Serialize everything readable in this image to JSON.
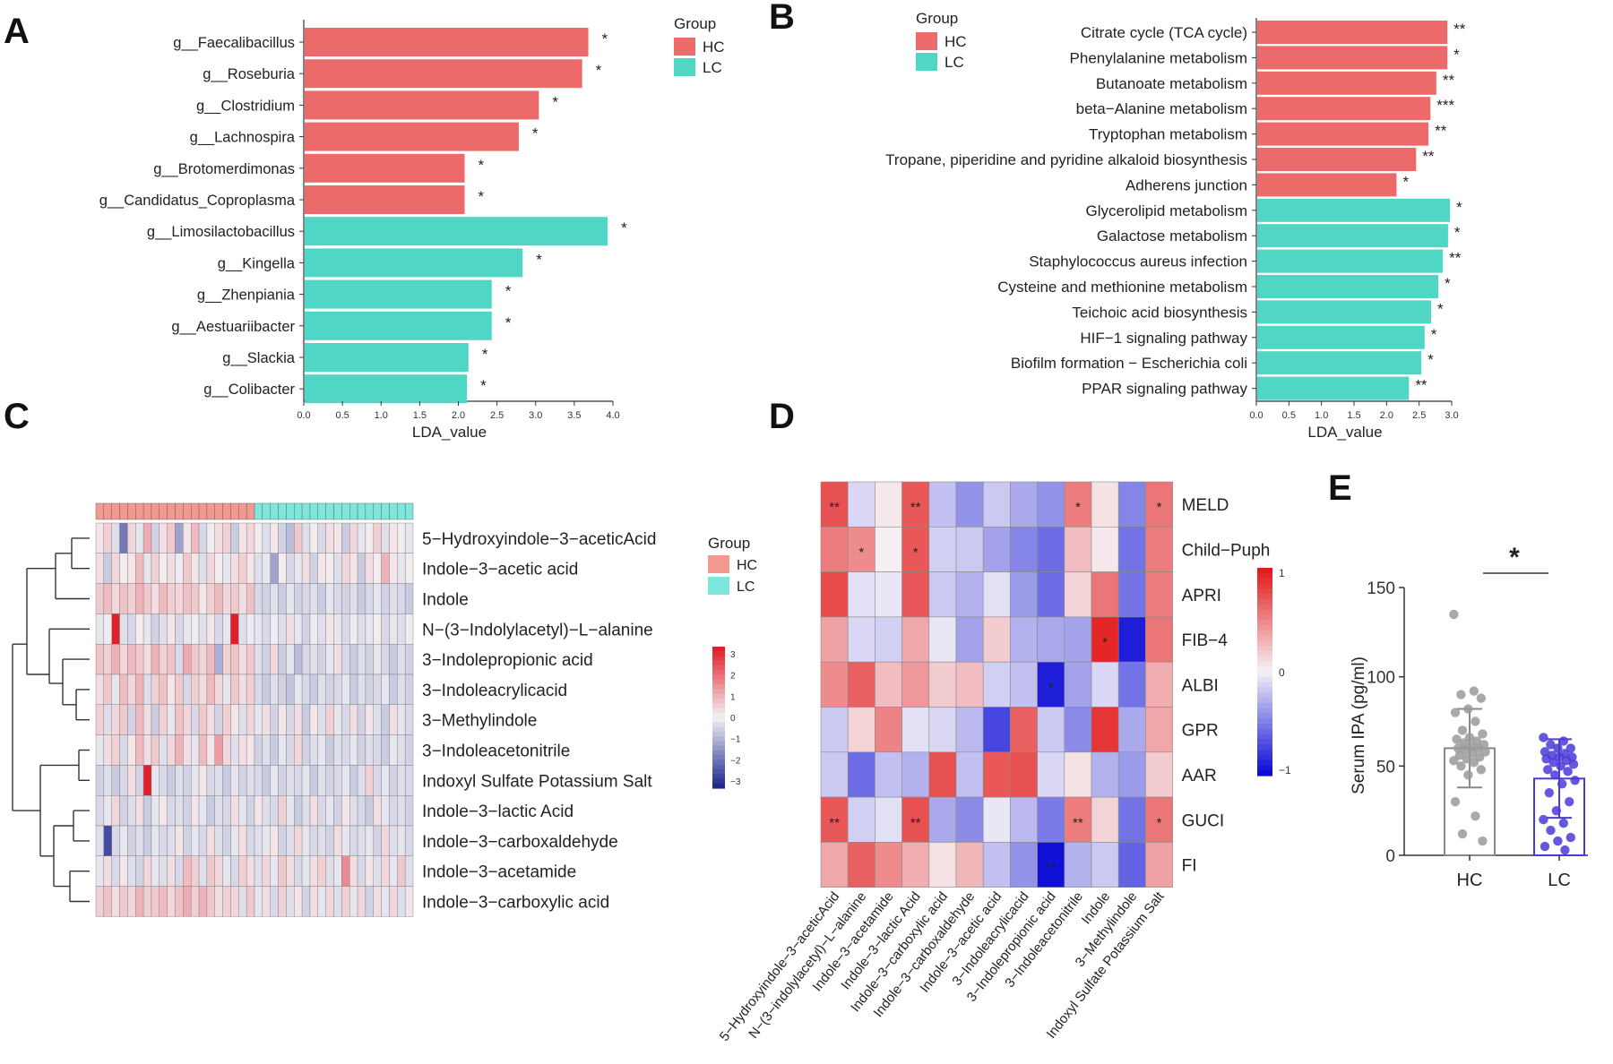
{
  "colors": {
    "hc": "#ed6a6a",
    "lc": "#4fd6c4",
    "highlight": "#d63a3a",
    "heat_low": "#0b0bd6",
    "heat_mid": "#f5f3f7",
    "heat_high": "#e41b1b",
    "c_low": "#1f2a8c",
    "c_high": "#e01f2a",
    "star_on_heat": "#f7d070",
    "bar_hc_dot": "#9a9a9a",
    "bar_lc_dot": "#4a3ad8"
  },
  "panel_labels": [
    "A",
    "B",
    "C",
    "D",
    "E"
  ],
  "chart_data": [
    {
      "panel": "A",
      "type": "bar",
      "orientation": "horizontal",
      "xlabel": "LDA_value",
      "xlim": [
        0,
        4.0
      ],
      "xticks": [
        "0.0",
        "0.5",
        "1.0",
        "1.5",
        "2.0",
        "2.5",
        "3.0",
        "3.5",
        "4.0"
      ],
      "legend": {
        "title": "Group",
        "entries": [
          "HC",
          "LC"
        ],
        "position": "top-right"
      },
      "highlighted": [
        "g__Clostridium"
      ],
      "categories": [
        "g__Faecalibacillus",
        "g__Roseburia",
        "g__Clostridium",
        "g__Lachnospira",
        "g__Brotomerdimonas",
        "g__Candidatus_Coproplasma",
        "g__Limosilactobacillus",
        "g__Kingella",
        "g__Zhenpiania",
        "g__Aestuariibacter",
        "g__Slackia",
        "g__Colibacter"
      ],
      "values": [
        3.67,
        3.59,
        3.03,
        2.77,
        2.07,
        2.07,
        3.92,
        2.82,
        2.42,
        2.42,
        2.12,
        2.1
      ],
      "groups": [
        "HC",
        "HC",
        "HC",
        "HC",
        "HC",
        "HC",
        "LC",
        "LC",
        "LC",
        "LC",
        "LC",
        "LC"
      ],
      "significance": [
        "*",
        "*",
        "*",
        "*",
        "*",
        "*",
        "*",
        "*",
        "*",
        "*",
        "*",
        "*"
      ]
    },
    {
      "panel": "B",
      "type": "bar",
      "orientation": "horizontal",
      "xlabel": "LDA_value",
      "xlim": [
        0,
        3.0
      ],
      "xticks": [
        "0.0",
        "0.5",
        "1.0",
        "1.5",
        "2.0",
        "2.5",
        "3.0"
      ],
      "legend": {
        "title": "Group",
        "entries": [
          "HC",
          "LC"
        ],
        "position": "top-left"
      },
      "highlighted": [
        "Tryptophan metabolism"
      ],
      "categories": [
        "Citrate cycle (TCA cycle)",
        "Phenylalanine metabolism",
        "Butanoate metabolism",
        "beta−Alanine metabolism",
        "Tryptophan metabolism",
        "Tropane, piperidine and pyridine alkaloid biosynthesis",
        "Adherens junction",
        "Glycerolipid metabolism",
        "Galactose metabolism",
        "Staphylococcus aureus infection",
        "Cysteine and methionine metabolism",
        "Teichoic acid biosynthesis",
        "HIF−1 signaling pathway",
        "Biofilm formation − Escherichia coli",
        "PPAR signaling pathway"
      ],
      "values": [
        2.92,
        2.92,
        2.75,
        2.66,
        2.63,
        2.44,
        2.14,
        2.96,
        2.93,
        2.85,
        2.78,
        2.67,
        2.57,
        2.52,
        2.33
      ],
      "groups": [
        "HC",
        "HC",
        "HC",
        "HC",
        "HC",
        "HC",
        "HC",
        "LC",
        "LC",
        "LC",
        "LC",
        "LC",
        "LC",
        "LC",
        "LC"
      ],
      "significance": [
        "**",
        "*",
        "**",
        "***",
        "**",
        "**",
        "*",
        "*",
        "*",
        "**",
        "*",
        "*",
        "*",
        "*",
        "**"
      ]
    },
    {
      "panel": "C",
      "type": "heatmap",
      "legend": {
        "title": "Group",
        "entries": [
          "HC",
          "LC"
        ],
        "position": "right"
      },
      "colorbar": {
        "ticks": [
          "3",
          "2",
          "1",
          "0",
          "−1",
          "−2",
          "−3"
        ],
        "range": [
          -3,
          3
        ]
      },
      "column_groups": [
        "HC",
        "HC",
        "HC",
        "HC",
        "HC",
        "HC",
        "HC",
        "HC",
        "HC",
        "HC",
        "HC",
        "HC",
        "HC",
        "HC",
        "HC",
        "HC",
        "HC",
        "HC",
        "HC",
        "HC",
        "LC",
        "LC",
        "LC",
        "LC",
        "LC",
        "LC",
        "LC",
        "LC",
        "LC",
        "LC",
        "LC",
        "LC",
        "LC",
        "LC",
        "LC",
        "LC",
        "LC",
        "LC",
        "LC",
        "LC"
      ],
      "highlighted": [
        "3−Indolepropionic acid"
      ],
      "rows": [
        "5−Hydroxyindole−3−aceticAcid",
        "Indole−3−acetic acid",
        "Indole",
        "N−(3−Indolylacetyl)−L−alanine",
        "3−Indolepropionic acid",
        "3−Indoleacrylicacid",
        "3−Methylindole",
        "3−Indoleacetonitrile",
        "Indoxyl Sulfate Potassium Salt",
        "Indole−3−lactic Acid",
        "Indole−3−carboxaldehyde",
        "Indole−3−acetamide",
        "Indole−3−carboxylic acid"
      ],
      "values": [
        [
          0.2,
          0.5,
          -0.3,
          -1.8,
          0.4,
          -0.2,
          1.0,
          -0.5,
          0.3,
          0.6,
          -1.2,
          0.2,
          0.8,
          -0.4,
          0.1,
          0.3,
          0.5,
          -0.6,
          0.2,
          0.4,
          0.1,
          -0.3,
          0.2,
          -0.5,
          -0.8,
          0.6,
          -0.3,
          0.1,
          -0.4,
          0.3,
          0.2,
          -0.6,
          0.4,
          -0.2,
          0.1,
          0.5,
          -0.3,
          0.2,
          0.1,
          -0.2
        ],
        [
          0.3,
          -0.6,
          0.4,
          0.1,
          0.2,
          0.8,
          -0.2,
          0.5,
          0.1,
          0.3,
          -0.1,
          0.6,
          0.2,
          -0.3,
          0.4,
          0.1,
          -0.2,
          0.3,
          0.5,
          0.2,
          -0.3,
          -0.2,
          -1.2,
          0.1,
          -0.4,
          -0.2,
          0.3,
          -0.5,
          0.2,
          0.1,
          -0.3,
          0.4,
          0.2,
          -0.6,
          0.3,
          0.1,
          0.9,
          0.2,
          -0.2,
          0.1
        ],
        [
          0.6,
          0.8,
          0.4,
          0.7,
          0.5,
          0.9,
          0.6,
          0.3,
          0.8,
          0.5,
          0.4,
          0.7,
          0.6,
          0.2,
          0.5,
          0.8,
          0.4,
          0.6,
          0.3,
          0.7,
          -0.4,
          -0.5,
          -0.3,
          -0.6,
          -0.2,
          -0.5,
          -0.4,
          -0.3,
          -0.6,
          -0.2,
          -0.4,
          -0.5,
          -0.3,
          -0.6,
          -0.4,
          -0.2,
          -0.5,
          -0.3,
          -0.4,
          -0.6
        ],
        [
          -0.2,
          -0.1,
          3.2,
          -0.3,
          -0.4,
          0.1,
          -0.2,
          -0.5,
          -0.3,
          0.2,
          -0.4,
          -0.2,
          -0.1,
          -0.3,
          0.2,
          -0.4,
          -0.2,
          3.0,
          -0.3,
          -0.1,
          -0.2,
          -0.4,
          -0.1,
          -0.3,
          0.3,
          -0.2,
          -0.5,
          -0.1,
          -0.3,
          0.2,
          -0.2,
          -0.4,
          -0.1,
          -0.3,
          -0.2,
          0.1,
          -0.4,
          -0.2,
          -0.3,
          -0.1
        ],
        [
          0.7,
          0.5,
          0.9,
          0.4,
          0.8,
          0.6,
          0.3,
          0.9,
          0.5,
          0.7,
          -0.4,
          1.0,
          0.6,
          0.4,
          0.8,
          -1.0,
          0.5,
          0.7,
          0.3,
          0.6,
          -0.3,
          -0.5,
          0.4,
          -0.6,
          -0.2,
          -0.8,
          -0.4,
          -0.3,
          -0.5,
          -0.2,
          0.3,
          -0.4,
          -0.6,
          -0.3,
          -0.5,
          -0.2,
          -0.4,
          -0.6,
          -0.3,
          -0.5
        ],
        [
          0.3,
          0.6,
          -0.2,
          0.8,
          0.4,
          0.9,
          -0.3,
          0.5,
          0.7,
          0.2,
          0.6,
          -0.4,
          0.5,
          0.3,
          0.8,
          0.4,
          -0.2,
          0.6,
          0.3,
          0.5,
          -0.4,
          -0.6,
          -0.3,
          -0.5,
          -0.7,
          -0.2,
          -0.4,
          -0.6,
          -0.3,
          -0.5,
          -0.4,
          -0.2,
          -0.6,
          -0.3,
          -0.5,
          -0.4,
          -0.2,
          -0.6,
          -0.3,
          -0.5
        ],
        [
          0.5,
          -0.3,
          0.4,
          0.6,
          -0.5,
          0.8,
          0.3,
          -0.6,
          0.5,
          -0.2,
          0.7,
          0.4,
          -0.4,
          0.6,
          0.3,
          -0.5,
          0.5,
          0.2,
          -0.3,
          0.4,
          -0.2,
          0.3,
          -0.5,
          0.2,
          -0.4,
          0.3,
          -0.6,
          0.2,
          -0.3,
          0.5,
          -0.2,
          -0.4,
          0.3,
          -0.5,
          0.2,
          -0.3,
          -0.6,
          0.3,
          -0.2,
          -0.4
        ],
        [
          -0.2,
          0.3,
          0.5,
          -0.4,
          0.2,
          0.8,
          0.3,
          0.6,
          -0.3,
          0.4,
          0.9,
          0.3,
          -0.2,
          0.8,
          0.2,
          1.2,
          0.4,
          -0.3,
          0.3,
          0.2,
          -0.5,
          -0.3,
          -0.6,
          -0.2,
          -0.4,
          0.4,
          -0.5,
          -0.3,
          -0.2,
          -0.6,
          -0.3,
          -0.4,
          -0.2,
          -0.5,
          -0.3,
          -0.4,
          -0.6,
          -0.2,
          -0.3,
          -0.5
        ],
        [
          -0.5,
          -0.3,
          -0.6,
          -0.4,
          0.3,
          -0.5,
          3.1,
          -0.2,
          -0.4,
          -0.6,
          -0.3,
          -0.5,
          -0.2,
          0.2,
          -0.4,
          -0.3,
          -0.6,
          -0.2,
          -0.5,
          -0.3,
          -0.4,
          -0.6,
          -0.2,
          -0.5,
          -0.3,
          -0.4,
          -0.2,
          -0.6,
          -0.3,
          -0.5,
          -0.4,
          -0.2,
          -0.6,
          -0.3,
          0.5,
          -0.4,
          -0.2,
          -0.5,
          -0.3,
          -0.4
        ],
        [
          -0.4,
          -0.2,
          0.4,
          -0.5,
          -0.3,
          0.3,
          -0.6,
          -0.2,
          0.2,
          -0.4,
          -0.3,
          -0.5,
          0.2,
          -0.2,
          -0.6,
          -0.3,
          -0.4,
          0.3,
          -0.2,
          -0.5,
          0.2,
          -0.3,
          -0.4,
          0.5,
          -0.2,
          -0.6,
          -0.3,
          0.3,
          -0.4,
          -0.2,
          -0.5,
          0.2,
          -0.3,
          -0.4,
          -0.6,
          0.3,
          -0.2,
          -0.4,
          -0.3,
          -0.5
        ],
        [
          -0.3,
          -2.5,
          -0.4,
          -0.2,
          -0.5,
          -0.3,
          -0.6,
          -0.2,
          -0.4,
          -0.3,
          0.2,
          -0.5,
          -0.2,
          -0.4,
          0.3,
          -0.3,
          -0.5,
          -0.2,
          0.3,
          -0.4,
          -0.3,
          -0.2,
          0.2,
          -0.5,
          -0.3,
          0.4,
          -0.2,
          -0.4,
          -0.3,
          -0.5,
          0.3,
          -0.2,
          -0.4,
          -0.3,
          -0.2,
          -0.5,
          0.4,
          -0.3,
          -0.2,
          -0.4
        ],
        [
          -0.2,
          0.3,
          -0.4,
          0.2,
          -0.3,
          -0.5,
          0.4,
          -0.2,
          -0.3,
          0.3,
          -0.4,
          0.8,
          0.5,
          -0.3,
          0.6,
          0.4,
          -0.2,
          -0.4,
          0.5,
          0.3,
          -0.3,
          0.4,
          -0.2,
          0.6,
          0.3,
          -0.4,
          -0.2,
          0.3,
          0.5,
          -0.3,
          -0.2,
          1.5,
          0.3,
          -0.4,
          0.2,
          -0.3,
          0.4,
          -0.2,
          0.6,
          -0.3
        ],
        [
          0.5,
          0.7,
          0.3,
          0.6,
          0.4,
          0.9,
          0.5,
          0.6,
          0.8,
          0.4,
          0.7,
          1.0,
          0.5,
          0.9,
          0.6,
          0.3,
          0.5,
          0.4,
          -0.3,
          0.6,
          -0.2,
          0.3,
          -0.4,
          0.5,
          -0.3,
          0.2,
          -0.5,
          0.3,
          -0.2,
          0.4,
          -0.3,
          0.5,
          -0.2,
          0.4,
          -0.5,
          0.3,
          -0.2,
          0.4,
          -0.3,
          0.2
        ]
      ]
    },
    {
      "panel": "D",
      "type": "heatmap",
      "colorbar": {
        "ticks": [
          "1",
          "0",
          "−1"
        ],
        "range": [
          -1,
          1
        ]
      },
      "rows": [
        "MELD",
        "Child−Puph",
        "APRI",
        "FIB−4",
        "ALBI",
        "GPR",
        "AAR",
        "GUCI",
        "FI"
      ],
      "columns": [
        "5−Hydroxyindole−3−aceticAcid",
        "N−(3−indolylacetyl)−L−alanine",
        "Indole−3−acetamide",
        "Indole−3−lactic Acid",
        "Indole−3−carboxylic acid",
        "Indole−3−carboxaldehyde",
        "Indole−3−acetic acid",
        "3−Indoleacrylicacid",
        "3−Indolepropionic acid",
        "3−Indoleacetonitrile",
        "Indole",
        "3−Methylindole",
        "Indoxyl Sulfate Potassium Salt"
      ],
      "highlighted": [
        "3−Indolepropionic acid"
      ],
      "values": [
        [
          0.75,
          -0.12,
          0.05,
          0.72,
          -0.22,
          -0.42,
          -0.18,
          -0.32,
          -0.42,
          0.55,
          0.08,
          -0.48,
          0.58
        ],
        [
          0.55,
          0.48,
          0.02,
          0.72,
          -0.15,
          -0.18,
          -0.35,
          -0.48,
          -0.58,
          0.25,
          0.05,
          -0.55,
          0.55
        ],
        [
          0.78,
          -0.08,
          -0.05,
          0.72,
          -0.18,
          -0.28,
          -0.08,
          -0.38,
          -0.58,
          0.15,
          0.58,
          -0.55,
          0.55
        ],
        [
          0.38,
          -0.12,
          -0.15,
          0.35,
          -0.05,
          -0.35,
          0.18,
          -0.28,
          -0.32,
          -0.35,
          0.95,
          -0.92,
          0.58
        ],
        [
          0.48,
          0.68,
          0.25,
          0.42,
          0.18,
          0.25,
          -0.15,
          -0.22,
          -0.92,
          -0.35,
          -0.12,
          -0.55,
          0.32
        ],
        [
          -0.18,
          0.15,
          0.52,
          -0.08,
          -0.12,
          -0.25,
          -0.75,
          0.68,
          -0.18,
          -0.45,
          0.88,
          -0.32,
          0.35
        ],
        [
          -0.18,
          -0.58,
          -0.22,
          -0.28,
          0.75,
          -0.22,
          0.72,
          0.75,
          -0.12,
          0.08,
          -0.28,
          -0.38,
          0.18
        ],
        [
          0.72,
          -0.15,
          -0.08,
          0.75,
          -0.32,
          -0.45,
          -0.05,
          -0.25,
          -0.52,
          0.55,
          0.15,
          -0.55,
          0.58
        ],
        [
          0.35,
          0.68,
          0.48,
          0.32,
          0.08,
          0.28,
          -0.22,
          -0.42,
          -0.98,
          -0.28,
          -0.18,
          -0.62,
          0.38
        ]
      ],
      "significance": [
        [
          "**",
          "",
          "",
          "**",
          "",
          "",
          "",
          "",
          "",
          "*",
          "",
          "",
          "*"
        ],
        [
          "",
          "*",
          "",
          "*",
          "",
          "",
          "",
          "",
          "",
          "",
          "",
          "",
          ""
        ],
        [
          "",
          "",
          "",
          "",
          "",
          "",
          "",
          "",
          "",
          "",
          "",
          "",
          ""
        ],
        [
          "",
          "",
          "",
          "",
          "",
          "",
          "",
          "",
          "",
          "",
          "*",
          "",
          ""
        ],
        [
          "",
          "",
          "",
          "",
          "",
          "",
          "",
          "",
          "*",
          "",
          "",
          "",
          ""
        ],
        [
          "",
          "",
          "",
          "",
          "",
          "",
          "",
          "",
          "",
          "",
          "",
          "",
          ""
        ],
        [
          "",
          "",
          "",
          "",
          "",
          "",
          "",
          "",
          "",
          "",
          "",
          "",
          ""
        ],
        [
          "**",
          "",
          "",
          "**",
          "",
          "",
          "",
          "",
          "",
          "**",
          "",
          "",
          "*"
        ],
        [
          "",
          "",
          "",
          "",
          "",
          "",
          "",
          "",
          "**",
          "",
          "",
          "",
          ""
        ]
      ]
    },
    {
      "panel": "E",
      "type": "bar",
      "orientation": "vertical",
      "ylabel": "Serum IPA (pg/ml)",
      "ylim": [
        0,
        150
      ],
      "yticks": [
        "0",
        "50",
        "100",
        "150"
      ],
      "categories": [
        "HC",
        "LC"
      ],
      "values": [
        60,
        43
      ],
      "sd": [
        22,
        22
      ],
      "significance": "*",
      "points": [
        [
          135,
          92,
          90,
          88,
          82,
          80,
          75,
          70,
          68,
          66,
          65,
          64,
          63,
          62,
          61,
          60,
          60,
          59,
          58,
          57,
          56,
          55,
          54,
          53,
          52,
          50,
          48,
          45,
          30,
          22,
          12,
          8
        ],
        [
          66,
          64,
          62,
          60,
          60,
          58,
          57,
          56,
          55,
          55,
          54,
          53,
          52,
          51,
          50,
          48,
          47,
          45,
          42,
          40,
          35,
          30,
          25,
          20,
          18,
          14,
          10,
          8,
          5,
          3
        ]
      ]
    }
  ]
}
